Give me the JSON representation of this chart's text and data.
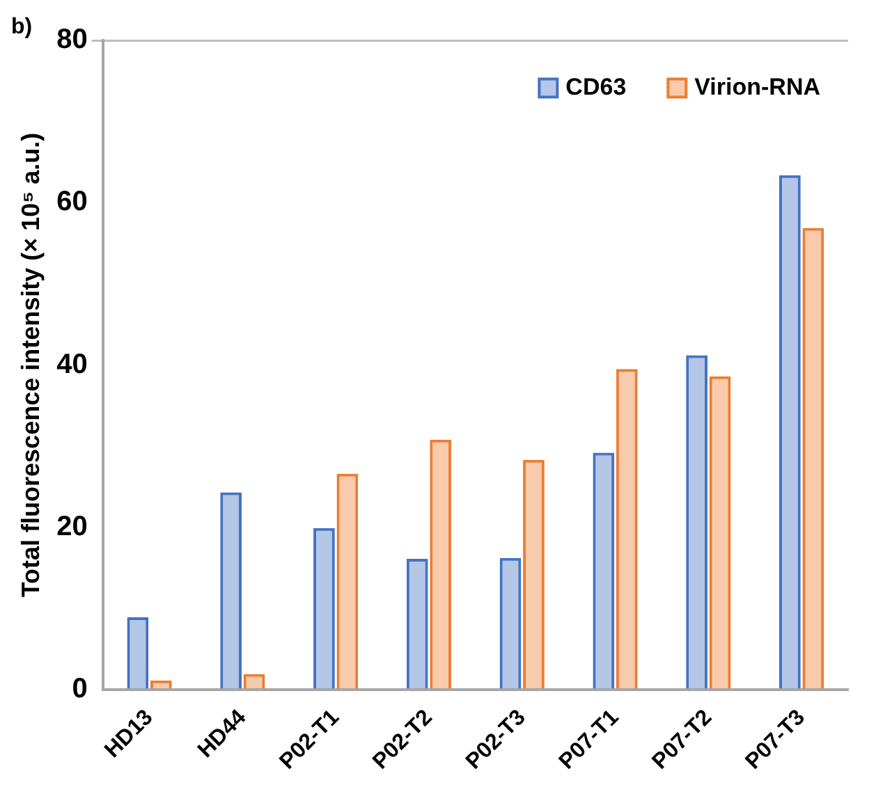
{
  "chart_data": {
    "type": "bar",
    "title": "b)",
    "ylabel": "Total fluorescence intensity (× 10⁵ a.u.)",
    "categories": [
      "HD13",
      "HD44",
      "P02-T1",
      "P02-T2",
      "P02-T3",
      "P07-T1",
      "P07-T2",
      "P07-T3"
    ],
    "series": [
      {
        "name": "CD63",
        "color": "#4472c4",
        "values": [
          8.9,
          24.3,
          19.9,
          16.1,
          16.2,
          29.2,
          41.2,
          63.4
        ]
      },
      {
        "name": "Virion-RNA",
        "color": "#ed7d31",
        "values": [
          1.1,
          1.9,
          26.6,
          30.8,
          28.3,
          39.5,
          38.6,
          56.9
        ]
      }
    ],
    "ylim": [
      0,
      80
    ],
    "yticks": [
      0,
      20,
      40,
      60,
      80
    ],
    "grid": false,
    "legend": "top right"
  }
}
